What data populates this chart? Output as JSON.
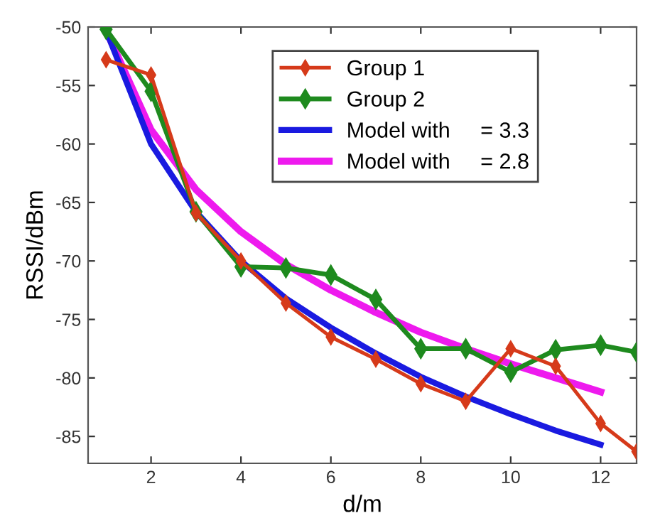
{
  "chart_data": {
    "type": "line",
    "xlabel": "d/m",
    "ylabel": "RSSI/dBm",
    "xlim": [
      0.6,
      12.8
    ],
    "ylim": [
      -87.3,
      -50
    ],
    "xticks": [
      2,
      4,
      6,
      8,
      10,
      12
    ],
    "yticks": [
      -50,
      -55,
      -60,
      -65,
      -70,
      -75,
      -80,
      -85
    ],
    "grid": false,
    "legend": "top right",
    "line_style": "solid",
    "series": [
      {
        "name": "Group 1",
        "color": "#d63a1a",
        "marker": "diamond",
        "x": [
          1,
          2,
          3,
          4,
          5,
          6,
          7,
          8,
          9,
          10,
          11,
          12,
          12.8
        ],
        "values": [
          -52.8,
          -54.1,
          -65.9,
          -70.0,
          -73.6,
          -76.5,
          -78.4,
          -80.5,
          -82.0,
          -77.5,
          -79.0,
          -83.9,
          -86.3
        ]
      },
      {
        "name": "Group 2",
        "color": "#1e8a1e",
        "marker": "diamond",
        "x": [
          1,
          2,
          3,
          4,
          5,
          6,
          7,
          8,
          9,
          10,
          11,
          12,
          12.8
        ],
        "values": [
          -50.2,
          -55.5,
          -65.8,
          -70.5,
          -70.6,
          -71.2,
          -73.3,
          -77.5,
          -77.5,
          -79.5,
          -77.6,
          -77.2,
          -77.8
        ]
      },
      {
        "name": "Model with     = 3.3",
        "color": "#1a1ae0",
        "marker": "none",
        "x": [
          1,
          2,
          3,
          4,
          5,
          6,
          7,
          8,
          9,
          10,
          11,
          12
        ],
        "values": [
          -50.3,
          -60.0,
          -65.8,
          -70.0,
          -73.2,
          -75.7,
          -77.9,
          -79.9,
          -81.6,
          -83.1,
          -84.5,
          -85.7
        ]
      },
      {
        "name": "Model with     = 2.8",
        "color": "#ee1aee",
        "marker": "none",
        "x": [
          1,
          2,
          3,
          4,
          5,
          6,
          7,
          8,
          9,
          10,
          11,
          12
        ],
        "values": [
          -50.3,
          -58.8,
          -63.9,
          -67.5,
          -70.3,
          -72.5,
          -74.4,
          -76.1,
          -77.5,
          -78.8,
          -80.0,
          -81.2
        ]
      }
    ]
  }
}
